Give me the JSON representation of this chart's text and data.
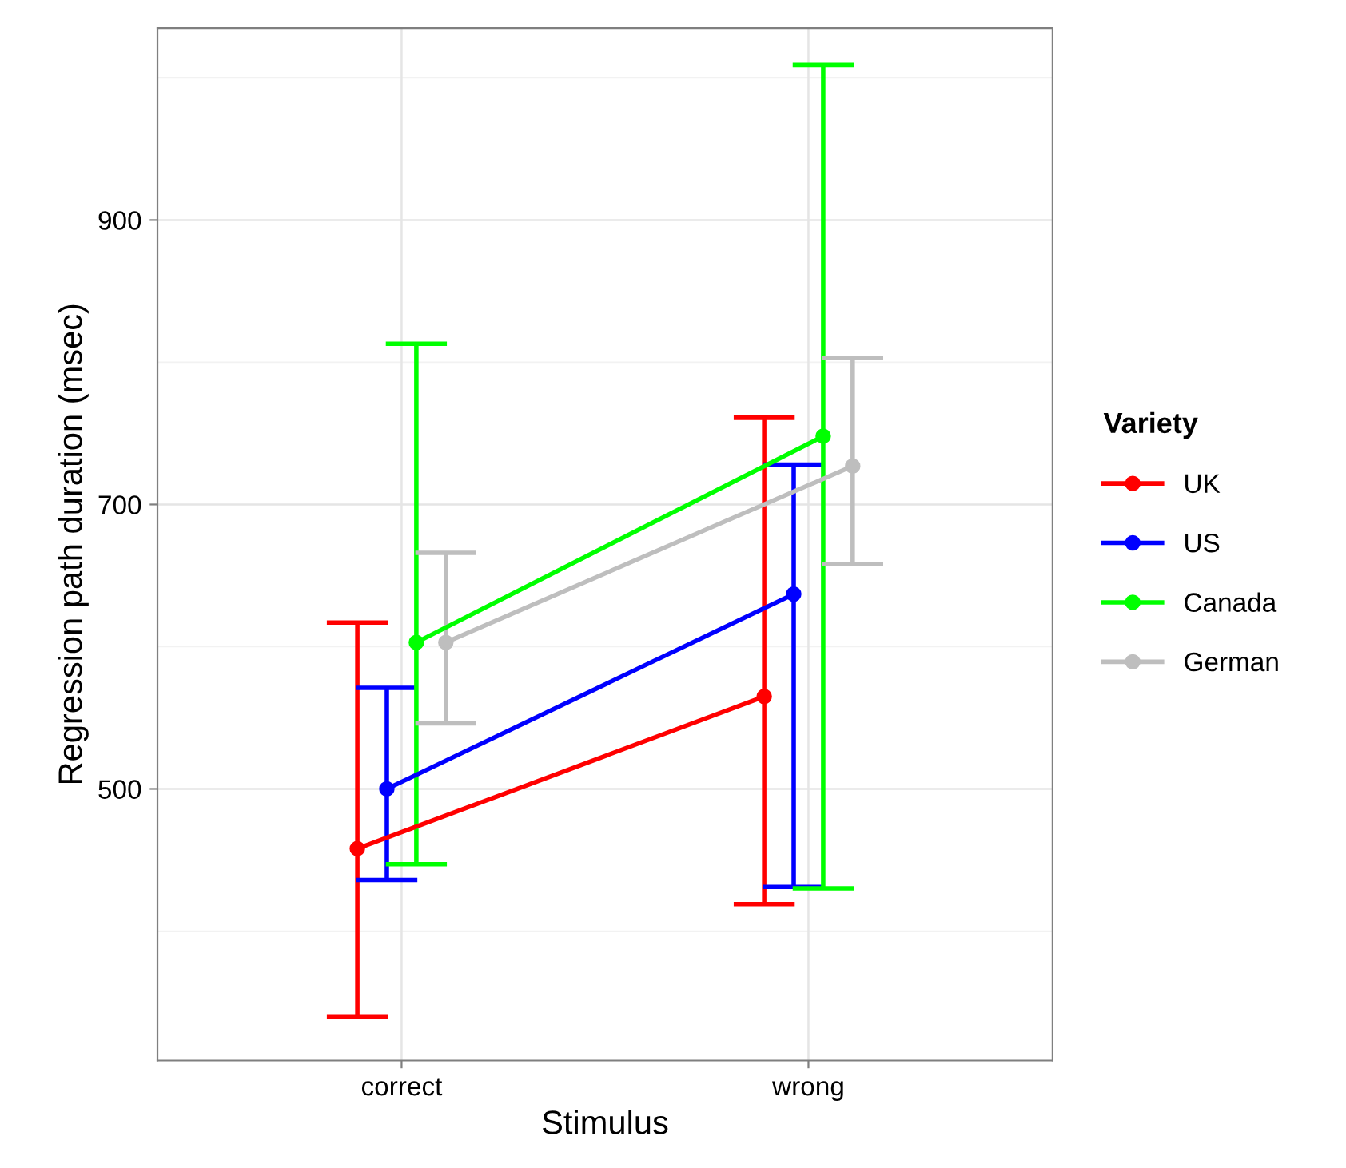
{
  "chart_data": {
    "type": "line",
    "xlabel": "Stimulus",
    "ylabel": "Regression path duration (msec)",
    "legend_title": "Variety",
    "categories": [
      "correct",
      "wrong"
    ],
    "series": [
      {
        "name": "UK",
        "color": "#ff0000",
        "values": [
          458,
          565
        ],
        "errors": [
          [
            340,
            617
          ],
          [
            419,
            761
          ]
        ]
      },
      {
        "name": "US",
        "color": "#0000ff",
        "values": [
          500,
          637
        ],
        "errors": [
          [
            436,
            571
          ],
          [
            431,
            728
          ]
        ]
      },
      {
        "name": "Canada",
        "color": "#00ff00",
        "values": [
          603,
          748
        ],
        "errors": [
          [
            447,
            813
          ],
          [
            430,
            1009
          ]
        ]
      },
      {
        "name": "German",
        "color": "#bebebe",
        "values": [
          603,
          727
        ],
        "errors": [
          [
            546,
            666
          ],
          [
            658,
            803
          ]
        ]
      }
    ],
    "ylim": [
      309,
      1035
    ],
    "yticks": [
      500,
      700,
      900
    ],
    "grid": true,
    "legend": "right",
    "marker": "circle",
    "line_style": "solid"
  }
}
